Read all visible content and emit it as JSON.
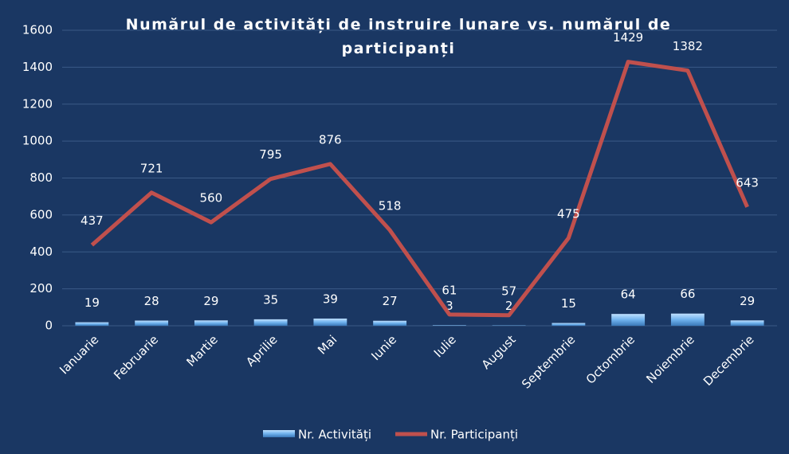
{
  "chart_data": {
    "type": "combo",
    "title": "Numărul de activități de instruire lunare vs. numărul de participanți",
    "categories": [
      "Ianuarie",
      "Februarie",
      "Martie",
      "Aprilie",
      "Mai",
      "Iunie",
      "Iulie",
      "August",
      "Septembrie",
      "Octombrie",
      "Noiembrie",
      "Decembrie"
    ],
    "series": [
      {
        "name": "Nr. Activități",
        "type": "bar",
        "color": "#6fb2ee",
        "values": [
          19,
          28,
          29,
          35,
          39,
          27,
          3,
          2,
          15,
          64,
          66,
          29
        ]
      },
      {
        "name": "Nr. Participanți",
        "type": "line",
        "color": "#c0504d",
        "values": [
          437,
          721,
          560,
          795,
          876,
          518,
          61,
          57,
          475,
          1429,
          1382,
          643
        ]
      }
    ],
    "ylim": [
      0,
      1600
    ],
    "yticks": [
      0,
      200,
      400,
      600,
      800,
      1000,
      1200,
      1400,
      1600
    ],
    "grid": true,
    "legend": "bottom"
  }
}
